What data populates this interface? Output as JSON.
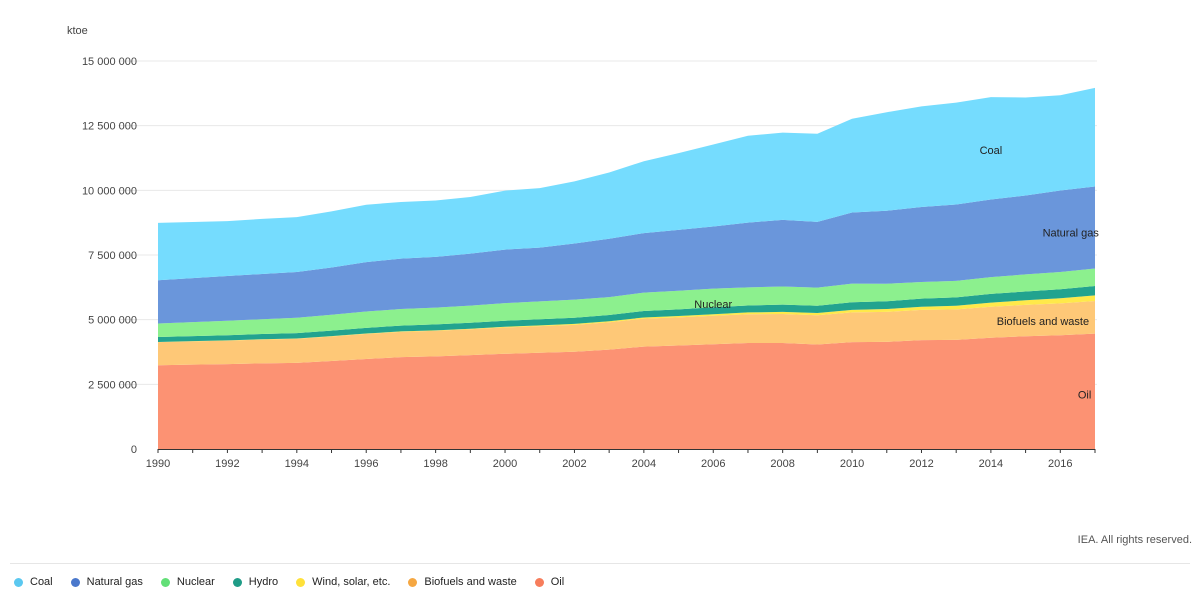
{
  "chart_data": {
    "type": "area",
    "stacked": true,
    "unit": "ktoe",
    "ylim": [
      0,
      15000000
    ],
    "yticks": [
      0,
      2500000,
      5000000,
      7500000,
      10000000,
      12500000,
      15000000
    ],
    "ytick_labels": [
      "0",
      "2 500 000",
      "5 000 000",
      "7 500 000",
      "10 000 000",
      "12 500 000",
      "15 000 000"
    ],
    "x": [
      1990,
      1991,
      1992,
      1993,
      1994,
      1995,
      1996,
      1997,
      1998,
      1999,
      2000,
      2001,
      2002,
      2003,
      2004,
      2005,
      2006,
      2007,
      2008,
      2009,
      2010,
      2011,
      2012,
      2013,
      2014,
      2015,
      2016,
      2017
    ],
    "xticks": [
      1990,
      1992,
      1994,
      1996,
      1998,
      2000,
      2002,
      2004,
      2006,
      2008,
      2010,
      2012,
      2014,
      2016
    ],
    "xtick_labels": [
      "1990",
      "1992",
      "1994",
      "1996",
      "1998",
      "2000",
      "2002",
      "2004",
      "2006",
      "2008",
      "2010",
      "2012",
      "2014",
      "2016"
    ],
    "series": [
      {
        "name": "Oil",
        "color": "#fc9273",
        "values": [
          3240000,
          3260000,
          3280000,
          3310000,
          3330000,
          3400000,
          3480000,
          3550000,
          3580000,
          3630000,
          3680000,
          3720000,
          3760000,
          3840000,
          3960000,
          4000000,
          4050000,
          4100000,
          4100000,
          4040000,
          4130000,
          4140000,
          4210000,
          4220000,
          4300000,
          4360000,
          4400000,
          4460000
        ]
      },
      {
        "name": "Biofuels and waste",
        "color": "#fec877",
        "values": [
          890000,
          900000,
          910000,
          920000,
          930000,
          950000,
          970000,
          980000,
          990000,
          1000000,
          1020000,
          1030000,
          1040000,
          1060000,
          1080000,
          1090000,
          1100000,
          1110000,
          1120000,
          1130000,
          1150000,
          1160000,
          1170000,
          1180000,
          1200000,
          1210000,
          1230000,
          1260000
        ]
      },
      {
        "name": "Wind, solar, etc.",
        "color": "#ffe94a",
        "values": [
          8000,
          9000,
          10000,
          11000,
          12000,
          13000,
          14000,
          16000,
          18000,
          20000,
          25000,
          30000,
          35000,
          40000,
          45000,
          50000,
          60000,
          70000,
          80000,
          90000,
          100000,
          110000,
          120000,
          140000,
          160000,
          180000,
          200000,
          220000
        ]
      },
      {
        "name": "Hydro",
        "color": "#22a38f",
        "values": [
          190000,
          195000,
          200000,
          205000,
          210000,
          215000,
          220000,
          225000,
          228000,
          231000,
          235000,
          235000,
          240000,
          240000,
          250000,
          260000,
          270000,
          270000,
          280000,
          280000,
          295000,
          300000,
          315000,
          320000,
          335000,
          340000,
          345000,
          360000
        ]
      },
      {
        "name": "Nuclear",
        "color": "#8cf08e",
        "values": [
          525000,
          540000,
          560000,
          570000,
          590000,
          610000,
          630000,
          640000,
          650000,
          660000,
          680000,
          690000,
          700000,
          690000,
          710000,
          720000,
          720000,
          700000,
          700000,
          700000,
          720000,
          680000,
          640000,
          640000,
          650000,
          660000,
          670000,
          680000
        ]
      },
      {
        "name": "Natural gas",
        "color": "#6a96db",
        "values": [
          1670000,
          1700000,
          1730000,
          1750000,
          1770000,
          1830000,
          1910000,
          1950000,
          1960000,
          2010000,
          2070000,
          2080000,
          2170000,
          2260000,
          2300000,
          2350000,
          2400000,
          2500000,
          2580000,
          2540000,
          2750000,
          2820000,
          2900000,
          2950000,
          3000000,
          3050000,
          3150000,
          3170000
        ]
      },
      {
        "name": "Coal",
        "color": "#75dcfe",
        "values": [
          2220000,
          2170000,
          2120000,
          2130000,
          2120000,
          2170000,
          2220000,
          2190000,
          2180000,
          2190000,
          2280000,
          2300000,
          2400000,
          2560000,
          2780000,
          2970000,
          3170000,
          3360000,
          3370000,
          3410000,
          3620000,
          3810000,
          3890000,
          3940000,
          3960000,
          3790000,
          3680000,
          3810000
        ]
      }
    ],
    "annotations": [
      {
        "text": "Coal",
        "year": 2014,
        "value": 11550000
      },
      {
        "text": "Natural gas",
        "year": 2016.3,
        "value": 8370000
      },
      {
        "text": "Nuclear",
        "year": 2006,
        "value": 5600000
      },
      {
        "text": "Biofuels and waste",
        "year": 2015.5,
        "value": 4950000
      },
      {
        "text": "Oil",
        "year": 2016.7,
        "value": 2100000
      }
    ]
  },
  "copyright": "IEA. All rights reserved.",
  "legend": [
    {
      "label": "Coal",
      "color": "#5bc8f0"
    },
    {
      "label": "Natural gas",
      "color": "#4a78cc"
    },
    {
      "label": "Nuclear",
      "color": "#62df77"
    },
    {
      "label": "Hydro",
      "color": "#1f9c87"
    },
    {
      "label": "Wind, solar, etc.",
      "color": "#ffe13a"
    },
    {
      "label": "Biofuels and waste",
      "color": "#f5a742"
    },
    {
      "label": "Oil",
      "color": "#f77d5c"
    }
  ]
}
